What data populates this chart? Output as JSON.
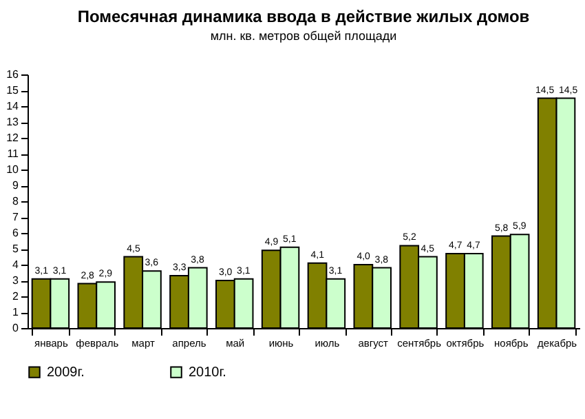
{
  "chart_data": {
    "type": "bar",
    "title": "Помесячная динамика ввода в действие жилых домов",
    "subtitle": "млн. кв. метров общей площади",
    "categories": [
      "январь",
      "февраль",
      "март",
      "апрель",
      "май",
      "июнь",
      "июль",
      "август",
      "сентябрь",
      "октябрь",
      "ноябрь",
      "декабрь"
    ],
    "series": [
      {
        "name": "2009г.",
        "color": "#808000",
        "values": [
          3.1,
          2.8,
          4.5,
          3.3,
          3.0,
          4.9,
          4.1,
          4.0,
          5.2,
          4.7,
          5.8,
          14.5
        ],
        "value_labels": [
          "3,1",
          "2,8",
          "4,5",
          "3,3",
          "3,0",
          "4,9",
          "4,1",
          "4,0",
          "5,2",
          "4,7",
          "5,8",
          "14,5"
        ]
      },
      {
        "name": "2010г.",
        "color": "#ccffcc",
        "values": [
          3.1,
          2.9,
          3.6,
          3.8,
          3.1,
          5.1,
          3.1,
          3.8,
          4.5,
          4.7,
          5.9,
          14.5
        ],
        "value_labels": [
          "3,1",
          "2,9",
          "3,6",
          "3,8",
          "3,1",
          "5,1",
          "3,1",
          "3,8",
          "4,5",
          "4,7",
          "5,9",
          "14,5"
        ]
      }
    ],
    "ylim": [
      0,
      16
    ],
    "yticks": [
      0,
      1,
      2,
      3,
      4,
      5,
      6,
      7,
      8,
      9,
      10,
      11,
      12,
      13,
      14,
      15,
      16
    ],
    "grid": false,
    "legend": "bottom"
  }
}
